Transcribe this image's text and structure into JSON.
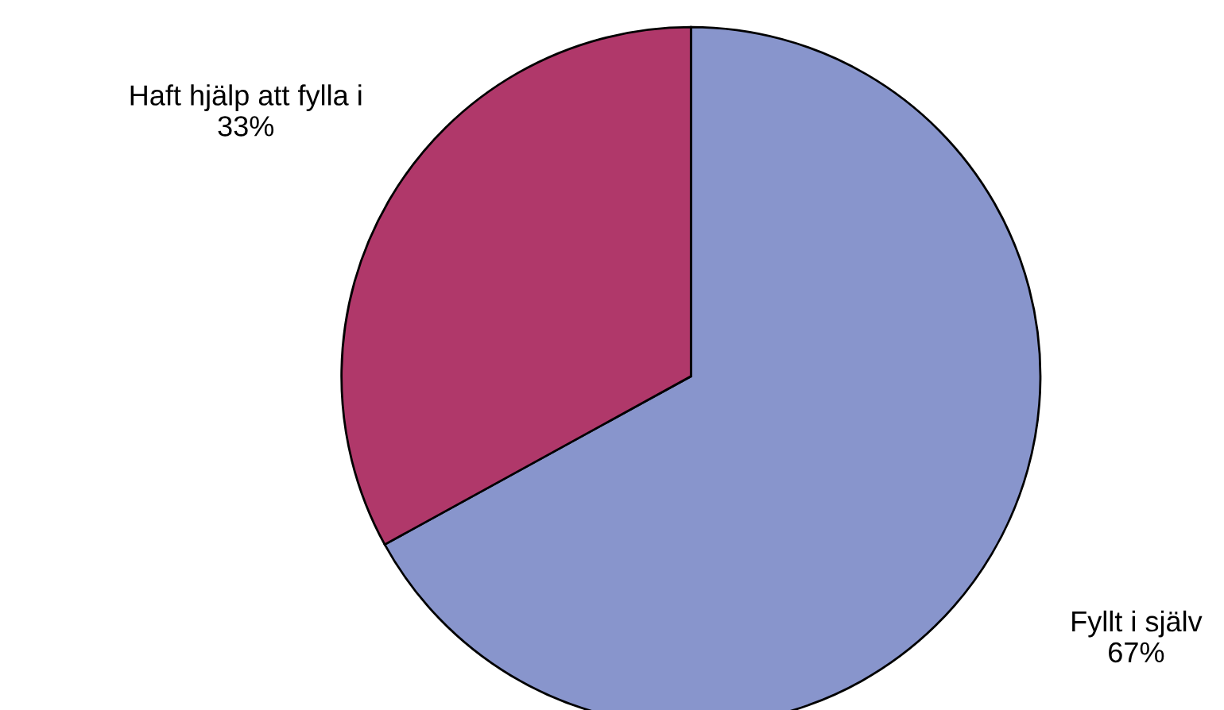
{
  "chart_data": {
    "type": "pie",
    "categories": [
      "Fyllt i själv",
      "Haft hjälp att fylla i"
    ],
    "values": [
      67,
      33
    ],
    "value_labels": [
      "67%",
      "33%"
    ],
    "colors": [
      "#8895cc",
      "#b0386a"
    ],
    "legend": false
  }
}
